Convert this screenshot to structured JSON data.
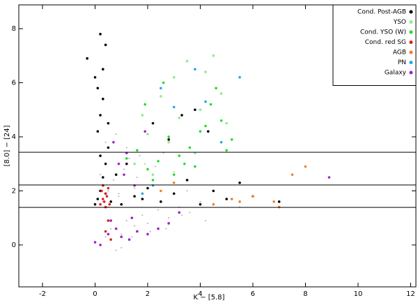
{
  "chart_data": {
    "type": "scatter",
    "x_label": "K − [5.8]",
    "y_label": "[8.0] − [24]",
    "xlim": [
      -2.9,
      12.2
    ],
    "ylim": [
      -1.55,
      8.88
    ],
    "xticks": [
      -2,
      0,
      2,
      4,
      6,
      8,
      10,
      12
    ],
    "yticks": [
      0,
      2,
      4,
      6,
      8
    ],
    "hlines": [
      3.43,
      2.22,
      1.39
    ],
    "legend": "upper right",
    "series": [
      {
        "color": "#b0b0b0",
        "x": [
          0.2,
          0.4,
          0.6,
          0.8,
          1.0,
          1.2,
          1.5,
          1.8,
          2.1,
          2.4,
          2.8,
          3.2,
          3.6,
          4.0,
          4.5,
          5.0,
          5.5,
          6.0,
          0.3,
          0.5,
          0.7,
          0.9,
          1.1,
          1.3,
          1.6,
          1.9,
          2.2,
          2.6,
          3.0,
          3.5,
          0.4,
          0.8,
          1.2,
          1.7,
          2.3,
          0.6,
          1.0,
          1.4,
          2.0,
          2.7,
          3.3,
          4.2,
          0.2,
          0.5,
          0.9,
          1.5
        ],
        "values": [
          0.0,
          0.3,
          0.6,
          -0.2,
          0.4,
          0.9,
          0.7,
          1.1,
          0.5,
          1.3,
          1.0,
          1.4,
          1.2,
          1.6,
          1.5,
          1.7,
          1.4,
          1.8,
          1.6,
          2.0,
          2.4,
          1.9,
          2.8,
          3.2,
          2.5,
          3.0,
          2.2,
          3.4,
          2.7,
          2.0,
          3.8,
          4.1,
          3.6,
          3.3,
          2.9,
          0.2,
          -0.1,
          0.3,
          0.8,
          0.6,
          1.1,
          0.9,
          2.6,
          1.4,
          1.8,
          2.1
        ]
      },
      {
        "name": "Cond. Post-AGB",
        "color": "#000000",
        "x": [
          0.0,
          0.1,
          0.2,
          0.3,
          0.4,
          0.5,
          0.1,
          0.2,
          0.3,
          -0.3,
          0.0,
          0.4,
          0.2,
          0.3,
          0.1,
          0.5,
          0.6,
          0.2,
          0.3,
          0.4,
          1.0,
          1.5,
          2.0,
          2.5,
          3.0,
          3.5,
          4.0,
          4.5,
          5.0,
          5.5,
          6.0,
          7.0,
          1.2,
          2.2,
          3.3,
          4.3,
          0.8,
          1.8,
          2.8,
          3.8
        ],
        "values": [
          1.5,
          1.7,
          2.0,
          2.5,
          3.0,
          3.6,
          4.2,
          4.8,
          5.4,
          6.9,
          6.2,
          7.4,
          7.8,
          6.5,
          5.8,
          4.5,
          1.6,
          3.3,
          2.2,
          1.9,
          1.5,
          1.8,
          2.1,
          1.6,
          1.9,
          2.4,
          1.5,
          2.0,
          1.7,
          2.3,
          1.8,
          1.6,
          3.0,
          4.5,
          4.8,
          4.2,
          2.6,
          1.7,
          3.9,
          5.0
        ]
      },
      {
        "name": "YSO",
        "color": "#90e890",
        "x": [
          1.5,
          2.0,
          2.5,
          3.0,
          3.5,
          4.0,
          4.5,
          5.0,
          2.2,
          3.2,
          4.2,
          3.8,
          2.8,
          4.8,
          1.8
        ],
        "values": [
          3.0,
          4.1,
          5.5,
          6.2,
          6.8,
          5.0,
          7.0,
          4.5,
          2.6,
          4.7,
          6.4,
          3.4,
          3.8,
          5.6,
          4.8
        ]
      },
      {
        "name": "Cond. YSO (W)",
        "color": "#22dd22",
        "x": [
          1.2,
          1.6,
          2.0,
          2.4,
          2.8,
          3.2,
          3.6,
          4.0,
          4.4,
          4.8,
          5.2,
          2.2,
          3.0,
          3.8,
          4.6,
          1.9,
          2.6,
          3.4,
          4.2,
          5.0
        ],
        "values": [
          3.2,
          3.5,
          2.8,
          3.1,
          4.0,
          3.3,
          3.6,
          4.2,
          5.2,
          4.6,
          3.9,
          2.4,
          2.6,
          2.9,
          5.8,
          5.2,
          6.0,
          3.0,
          4.4,
          3.5
        ]
      },
      {
        "name": "Cond. red SG",
        "color": "#e02020",
        "x": [
          0.2,
          0.3,
          0.4,
          0.5,
          0.35,
          0.45,
          0.25,
          0.55,
          0.3,
          0.4,
          0.4,
          0.6,
          0.5
        ],
        "values": [
          1.5,
          1.7,
          1.9,
          2.1,
          1.6,
          1.8,
          2.0,
          1.5,
          2.2,
          1.4,
          0.5,
          0.2,
          0.9
        ]
      },
      {
        "name": "AGB",
        "color": "#f08020",
        "x": [
          2.5,
          4.5,
          5.5,
          6.0,
          6.8,
          7.0,
          7.5,
          8.0,
          3.0,
          5.2
        ],
        "values": [
          2.0,
          1.5,
          1.6,
          1.8,
          1.6,
          1.4,
          2.6,
          2.9,
          2.3,
          1.7
        ]
      },
      {
        "name": "PN",
        "color": "#20a8e8",
        "x": [
          2.5,
          3.0,
          3.8,
          4.2,
          5.5,
          1.8,
          2.2,
          4.8
        ],
        "values": [
          5.8,
          5.1,
          6.5,
          5.3,
          6.2,
          1.9,
          2.2,
          3.8
        ]
      },
      {
        "name": "Galaxy",
        "color": "#a020d0",
        "x": [
          0.0,
          0.2,
          0.5,
          0.8,
          1.0,
          1.3,
          1.6,
          2.0,
          2.4,
          2.8,
          0.9,
          1.2,
          0.7,
          1.1,
          1.5,
          1.9,
          0.6,
          1.4,
          3.2,
          8.9
        ],
        "values": [
          0.1,
          0.0,
          0.4,
          0.6,
          0.3,
          0.2,
          0.5,
          0.4,
          0.6,
          0.8,
          3.0,
          3.4,
          3.8,
          2.6,
          2.2,
          4.2,
          0.9,
          1.0,
          1.2,
          2.5
        ]
      }
    ]
  }
}
